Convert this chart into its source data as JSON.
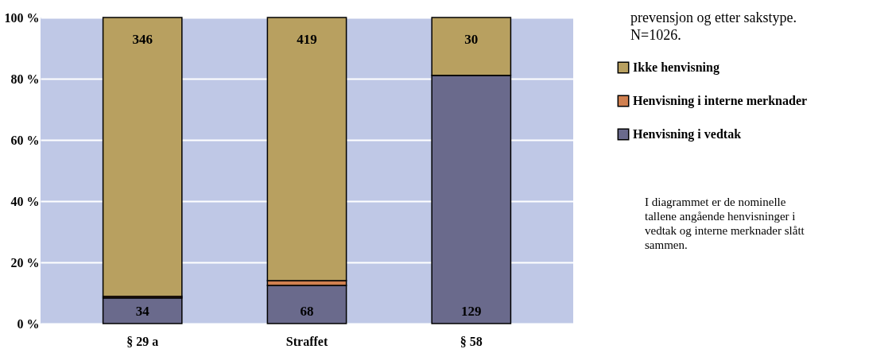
{
  "chart_data": {
    "type": "bar",
    "stacked": true,
    "title": "prevensjon og etter sakstype. N=1026.",
    "categories": [
      "§ 29 a",
      "Straffet",
      "§ 58"
    ],
    "series": [
      {
        "name": "Henvisning i vedtak",
        "color": "#6a6a8c",
        "values": [
          8.4,
          12.5,
          81.1
        ]
      },
      {
        "name": "Henvisning i interne merknader",
        "color": "#d08050",
        "values": [
          0.5,
          1.5,
          0
        ]
      },
      {
        "name": "Ikke henvisning",
        "color": "#b8a060",
        "values": [
          91.1,
          86.0,
          18.9
        ]
      }
    ],
    "ylim": [
      0,
      100
    ],
    "yticks": [
      {
        "value": 0,
        "label": "0 %"
      },
      {
        "value": 20,
        "label": "20 %"
      },
      {
        "value": 40,
        "label": "40 %"
      },
      {
        "value": 60,
        "label": "60 %"
      },
      {
        "value": 80,
        "label": "80 %"
      },
      {
        "value": 100,
        "label": "100 %"
      }
    ],
    "grid": "y",
    "legend": "right",
    "annotations": [
      {
        "text": "34",
        "x": "§ 29 a",
        "y": 0
      },
      {
        "text": "68",
        "x": "Straffet",
        "y": 0
      },
      {
        "text": "129",
        "x": "§ 58",
        "y": 0
      },
      {
        "text": "346",
        "x": "§ 29 a",
        "y": 100
      },
      {
        "text": "419",
        "x": "Straffet",
        "y": 100
      },
      {
        "text": "30",
        "x": "§ 58",
        "y": 100
      },
      "I diagrammet er de nominelle tallene angående henvisninger i vedtak og interne merknader slått sammen."
    ]
  }
}
